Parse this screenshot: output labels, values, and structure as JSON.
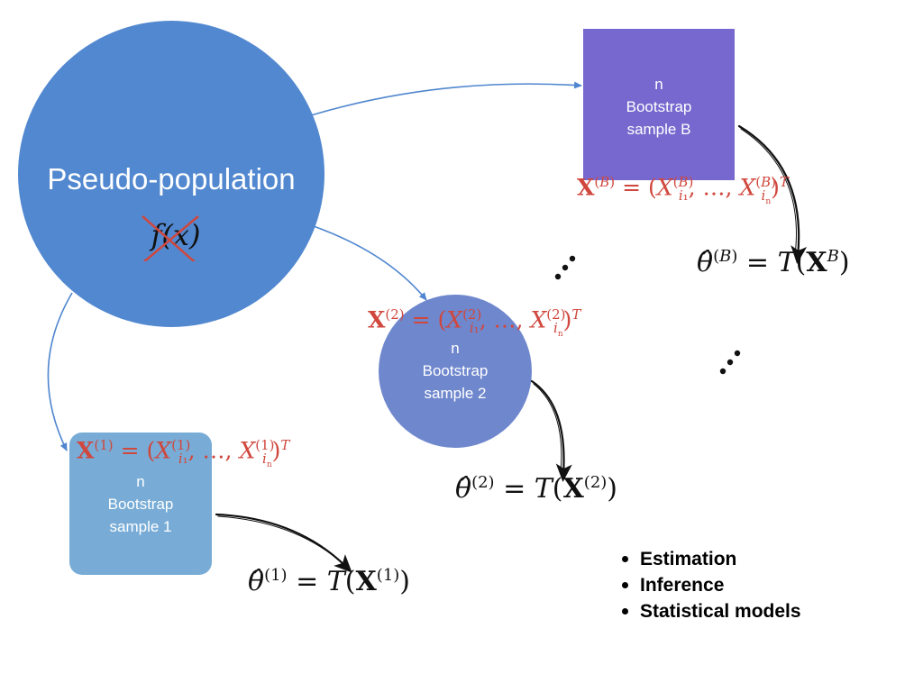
{
  "population": {
    "label": "Pseudo-population",
    "density": "f(x)",
    "color": "#5288d0"
  },
  "samples": [
    {
      "id": "1",
      "lines": [
        "n",
        "Bootstrap",
        "sample 1"
      ],
      "color": "#78acd6",
      "formula_red": "X(1) = (Xi1(1), ..., Xin(1))T",
      "estimate": "θ̂(1) = T(X(1))"
    },
    {
      "id": "2",
      "lines": [
        "n",
        "Bootstrap",
        "sample 2"
      ],
      "color": "#6f87cd",
      "formula_red": "X(2) = (Xi1(2), ..., Xin(2))T",
      "estimate": "θ̂(2) = T(X(2))"
    },
    {
      "id": "B",
      "lines": [
        "n",
        "Bootstrap",
        "sample B"
      ],
      "color": "#7768cf",
      "formula_red": "X(B) = (Xi1(B), ..., Xin(B))T",
      "estimate": "θ̂(B) = T(XB)"
    }
  ],
  "bullets": [
    "Estimation",
    "Inference",
    "Statistical models"
  ],
  "colors": {
    "arrow_blue": "#4f86cf",
    "formula_red": "#d0473d",
    "text_black": "#111111"
  }
}
